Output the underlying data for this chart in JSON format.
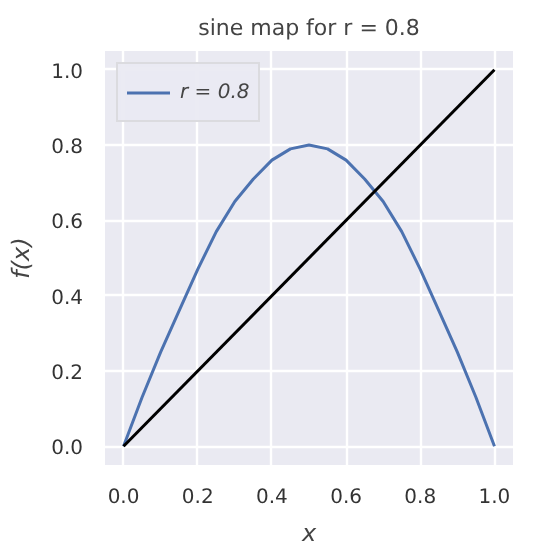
{
  "chart_data": {
    "type": "line",
    "title": "sine map for r = 0.8",
    "xlabel": "x",
    "ylabel": "f(x)",
    "x": [
      0,
      0.05,
      0.1,
      0.15,
      0.2,
      0.25,
      0.3,
      0.35,
      0.4,
      0.45,
      0.5,
      0.55,
      0.6,
      0.65,
      0.7,
      0.75,
      0.8,
      0.85,
      0.9,
      0.95,
      1
    ],
    "series": [
      {
        "name": "r = 0.8",
        "color": "#4c72b0",
        "values": [
          0,
          0.13,
          0.25,
          0.36,
          0.47,
          0.57,
          0.65,
          0.71,
          0.76,
          0.79,
          0.8,
          0.79,
          0.76,
          0.71,
          0.65,
          0.57,
          0.47,
          0.36,
          0.25,
          0.13,
          0
        ]
      },
      {
        "color": "#000000",
        "x": [
          0,
          1
        ],
        "values": [
          0,
          1
        ]
      }
    ],
    "xlim": [
      -0.05,
      1.05
    ],
    "ylim": [
      -0.05,
      1.05
    ],
    "xticks": [
      {
        "value": 0,
        "label": "0.0"
      },
      {
        "value": 0.2,
        "label": "0.2"
      },
      {
        "value": 0.4,
        "label": "0.4"
      },
      {
        "value": 0.6,
        "label": "0.6"
      },
      {
        "value": 0.8,
        "label": "0.8"
      },
      {
        "value": 1,
        "label": "1.0"
      }
    ],
    "yticks": [
      {
        "value": 0,
        "label": "0.0"
      },
      {
        "value": 0.2,
        "label": "0.2"
      },
      {
        "value": 0.4,
        "label": "0.4"
      },
      {
        "value": 0.6,
        "label": "0.6"
      },
      {
        "value": 0.8,
        "label": "0.8"
      },
      {
        "value": 1,
        "label": "1.0"
      }
    ],
    "grid": true,
    "legend": "top left",
    "line_style": "solid",
    "marker": "none"
  }
}
